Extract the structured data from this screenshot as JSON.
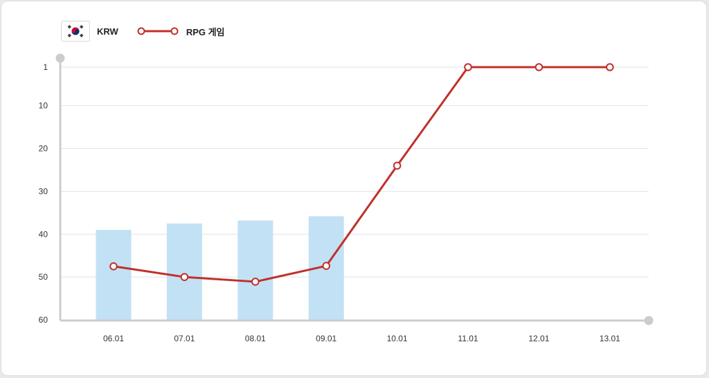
{
  "legend": {
    "currency_label": "KRW",
    "series_label": "RPG 게임"
  },
  "colors": {
    "bar": "#c2e1f5",
    "line": "#c0302a",
    "axis": "#cccccc",
    "grid": "#e2e2e2"
  },
  "chart_data": {
    "type": "bar",
    "categories": [
      "06.01",
      "07.01",
      "08.01",
      "09.01",
      "10.01",
      "11.01",
      "12.01",
      "13.01"
    ],
    "y_ticks": [
      1,
      10,
      20,
      30,
      40,
      50,
      60
    ],
    "ylim": [
      1,
      60
    ],
    "y_inverted": true,
    "grid": true,
    "legend_position": "top-left",
    "series": [
      {
        "type": "bar",
        "values": [
          39,
          37.5,
          36.8,
          35.8,
          null,
          null,
          null,
          null
        ]
      },
      {
        "name": "RPG 게임",
        "type": "line",
        "values": [
          47.5,
          50,
          51.1,
          47.4,
          24,
          1,
          1,
          1
        ]
      }
    ]
  }
}
